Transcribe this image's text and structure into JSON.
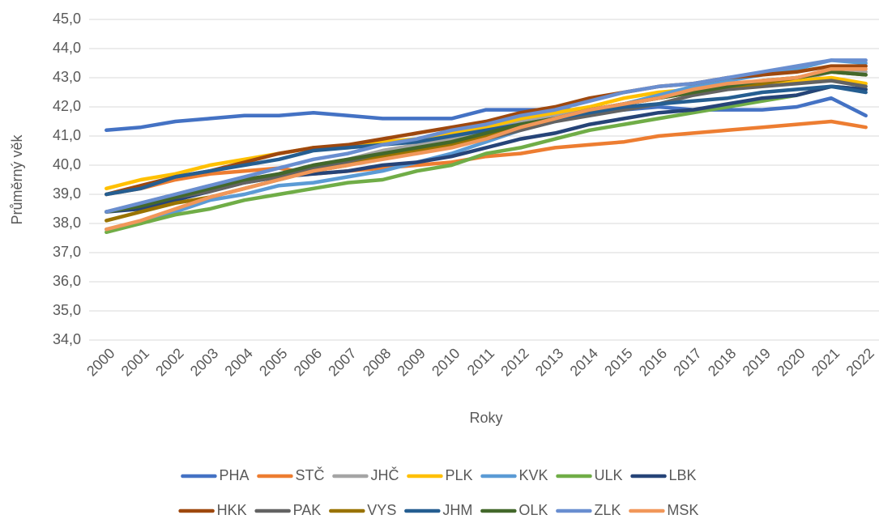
{
  "chart_data": {
    "type": "line",
    "x_label": "Roky",
    "y_label": "Průměrný věk",
    "categories": [
      "2000",
      "2001",
      "2002",
      "2003",
      "2004",
      "2005",
      "2006",
      "2007",
      "2008",
      "2009",
      "2010",
      "2011",
      "2012",
      "2013",
      "2014",
      "2015",
      "2016",
      "2017",
      "2018",
      "2019",
      "2020",
      "2021",
      "2022"
    ],
    "ylim": [
      34,
      45
    ],
    "yticks": [
      {
        "value": 34,
        "label": "34,0"
      },
      {
        "value": 35,
        "label": "35,0"
      },
      {
        "value": 36,
        "label": "36,0"
      },
      {
        "value": 37,
        "label": "37,0"
      },
      {
        "value": 38,
        "label": "38,0"
      },
      {
        "value": 39,
        "label": "39,0"
      },
      {
        "value": 40,
        "label": "40,0"
      },
      {
        "value": 41,
        "label": "41,0"
      },
      {
        "value": 42,
        "label": "42,0"
      },
      {
        "value": 43,
        "label": "43,0"
      },
      {
        "value": 44,
        "label": "44,0"
      },
      {
        "value": 45,
        "label": "45,0"
      }
    ],
    "grid": true,
    "legend": "bottom",
    "series": [
      {
        "name": "PHA",
        "color": "#4472c4",
        "values": [
          41.2,
          41.3,
          41.5,
          41.6,
          41.7,
          41.7,
          41.8,
          41.7,
          41.6,
          41.6,
          41.6,
          41.9,
          41.9,
          41.9,
          41.9,
          41.9,
          42.0,
          41.9,
          41.9,
          41.9,
          42.0,
          42.3,
          41.7
        ]
      },
      {
        "name": "STČ",
        "color": "#ed7d31",
        "values": [
          39.0,
          39.2,
          39.5,
          39.7,
          39.8,
          39.9,
          39.7,
          39.8,
          39.9,
          40.0,
          40.1,
          40.3,
          40.4,
          40.6,
          40.7,
          40.8,
          41.0,
          41.1,
          41.2,
          41.3,
          41.4,
          41.5,
          41.3
        ]
      },
      {
        "name": "JHČ",
        "color": "#a5a5a5",
        "values": [
          38.4,
          38.7,
          39.0,
          39.3,
          39.5,
          39.7,
          40.0,
          40.2,
          40.5,
          40.7,
          40.9,
          41.2,
          41.5,
          41.7,
          41.9,
          42.1,
          42.3,
          42.5,
          42.7,
          42.8,
          42.9,
          43.2,
          43.2
        ]
      },
      {
        "name": "PLK",
        "color": "#ffc000",
        "values": [
          39.2,
          39.5,
          39.7,
          40.0,
          40.2,
          40.4,
          40.6,
          40.6,
          40.8,
          40.9,
          41.1,
          41.3,
          41.6,
          41.8,
          42.0,
          42.3,
          42.5,
          42.6,
          42.7,
          42.8,
          42.9,
          43.0,
          42.8
        ]
      },
      {
        "name": "KVK",
        "color": "#5b9bd5",
        "values": [
          37.8,
          38.0,
          38.4,
          38.8,
          39.0,
          39.3,
          39.4,
          39.6,
          39.8,
          40.1,
          40.4,
          40.8,
          41.2,
          41.5,
          41.8,
          42.1,
          42.4,
          42.7,
          42.9,
          43.1,
          43.3,
          43.6,
          43.5
        ]
      },
      {
        "name": "ULK",
        "color": "#70ad47",
        "values": [
          37.7,
          38.0,
          38.3,
          38.5,
          38.8,
          39.0,
          39.2,
          39.4,
          39.5,
          39.8,
          40.0,
          40.4,
          40.6,
          40.9,
          41.2,
          41.4,
          41.6,
          41.8,
          42.0,
          42.2,
          42.4,
          42.7,
          42.6
        ]
      },
      {
        "name": "LBK",
        "color": "#264478",
        "values": [
          38.4,
          38.5,
          38.8,
          39.1,
          39.4,
          39.6,
          39.7,
          39.8,
          40.0,
          40.1,
          40.3,
          40.6,
          40.9,
          41.1,
          41.4,
          41.6,
          41.8,
          41.9,
          42.1,
          42.3,
          42.4,
          42.7,
          42.6
        ]
      },
      {
        "name": "HKK",
        "color": "#9e480e",
        "values": [
          39.0,
          39.3,
          39.6,
          39.8,
          40.1,
          40.4,
          40.6,
          40.7,
          40.9,
          41.1,
          41.3,
          41.5,
          41.8,
          42.0,
          42.3,
          42.5,
          42.7,
          42.8,
          43.0,
          43.1,
          43.2,
          43.4,
          43.4
        ]
      },
      {
        "name": "PAK",
        "color": "#636363",
        "values": [
          38.4,
          38.6,
          38.9,
          39.1,
          39.4,
          39.6,
          39.9,
          40.1,
          40.3,
          40.5,
          40.7,
          40.9,
          41.2,
          41.5,
          41.7,
          41.9,
          42.1,
          42.4,
          42.6,
          42.7,
          42.8,
          42.9,
          42.7
        ]
      },
      {
        "name": "VYS",
        "color": "#997300",
        "values": [
          38.1,
          38.4,
          38.7,
          38.9,
          39.2,
          39.5,
          39.8,
          40.0,
          40.3,
          40.5,
          40.7,
          41.0,
          41.3,
          41.6,
          41.9,
          42.1,
          42.3,
          42.5,
          42.7,
          42.8,
          43.0,
          43.2,
          43.1
        ]
      },
      {
        "name": "JHM",
        "color": "#255e91",
        "values": [
          39.0,
          39.2,
          39.6,
          39.8,
          40.0,
          40.2,
          40.5,
          40.6,
          40.7,
          40.8,
          41.0,
          41.2,
          41.4,
          41.6,
          41.8,
          42.0,
          42.1,
          42.2,
          42.3,
          42.5,
          42.6,
          42.7,
          42.5
        ]
      },
      {
        "name": "OLK",
        "color": "#43682b",
        "values": [
          38.4,
          38.6,
          38.9,
          39.2,
          39.5,
          39.7,
          40.0,
          40.2,
          40.4,
          40.6,
          40.8,
          41.1,
          41.4,
          41.6,
          41.9,
          42.1,
          42.3,
          42.5,
          42.7,
          42.9,
          43.0,
          43.2,
          43.1
        ]
      },
      {
        "name": "ZLK",
        "color": "#698ed0",
        "values": [
          38.4,
          38.7,
          39.0,
          39.3,
          39.6,
          39.9,
          40.2,
          40.4,
          40.7,
          40.9,
          41.2,
          41.4,
          41.7,
          41.9,
          42.2,
          42.5,
          42.7,
          42.8,
          43.0,
          43.2,
          43.4,
          43.6,
          43.6
        ]
      },
      {
        "name": "MSK",
        "color": "#f1975a",
        "values": [
          37.8,
          38.1,
          38.5,
          38.9,
          39.2,
          39.5,
          39.8,
          40.0,
          40.2,
          40.4,
          40.6,
          40.9,
          41.3,
          41.6,
          41.9,
          42.1,
          42.3,
          42.6,
          42.8,
          42.9,
          43.0,
          43.3,
          43.3
        ]
      }
    ]
  }
}
